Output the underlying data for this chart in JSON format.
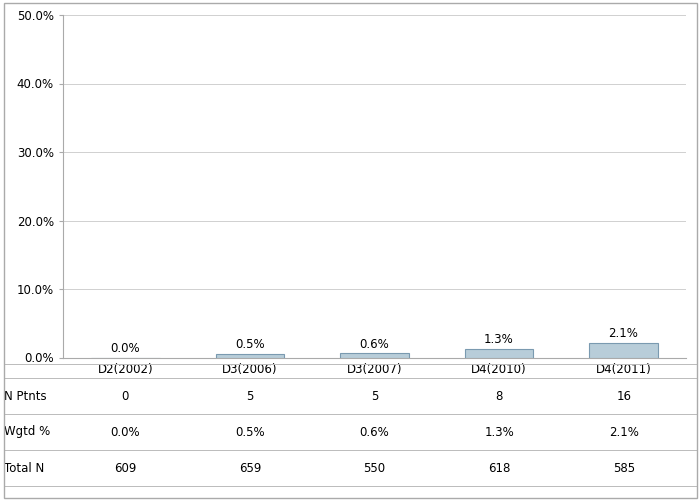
{
  "categories": [
    "D2(2002)",
    "D3(2006)",
    "D3(2007)",
    "D4(2010)",
    "D4(2011)"
  ],
  "values": [
    0.0,
    0.5,
    0.6,
    1.3,
    2.1
  ],
  "bar_color_face": "#b8cdd9",
  "bar_color_edge": "#7a9ab0",
  "bar_labels": [
    "0.0%",
    "0.5%",
    "0.6%",
    "1.3%",
    "2.1%"
  ],
  "ylim": [
    0,
    50
  ],
  "yticks": [
    0,
    10,
    20,
    30,
    40,
    50
  ],
  "ytick_labels": [
    "0.0%",
    "10.0%",
    "20.0%",
    "30.0%",
    "40.0%",
    "50.0%"
  ],
  "table_rows": {
    "N Ptnts": [
      "0",
      "5",
      "5",
      "8",
      "16"
    ],
    "Wgtd %": [
      "0.0%",
      "0.5%",
      "0.6%",
      "1.3%",
      "2.1%"
    ],
    "Total N": [
      "609",
      "659",
      "550",
      "618",
      "585"
    ]
  },
  "background_color": "#ffffff",
  "grid_color": "#d0d0d0",
  "label_fontsize": 8.5,
  "tick_fontsize": 8.5,
  "table_fontsize": 8.5,
  "border_color": "#aaaaaa"
}
